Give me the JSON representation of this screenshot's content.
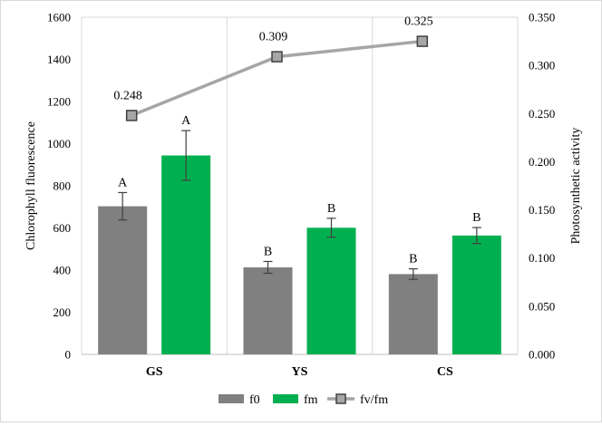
{
  "chart_data": {
    "type": "bar",
    "title": "",
    "categories": [
      "GS",
      "YS",
      "CS"
    ],
    "series": [
      {
        "name": "f0",
        "kind": "bar",
        "axis": "left",
        "color": "#808080",
        "values": [
          703,
          413,
          381
        ],
        "errors": [
          65,
          28,
          25
        ],
        "significance": [
          "A",
          "B",
          "B"
        ]
      },
      {
        "name": "fm",
        "kind": "bar",
        "axis": "left",
        "color": "#00b050",
        "values": [
          944,
          601,
          564
        ],
        "errors": [
          118,
          45,
          38
        ],
        "significance": [
          "A",
          "B",
          "B"
        ]
      },
      {
        "name": "fv/fm",
        "kind": "line",
        "axis": "right",
        "color": "#a6a6a6",
        "marker_fill": "#a6a6a6",
        "marker_stroke": "#404040",
        "values": [
          0.248,
          0.309,
          0.325
        ],
        "labels": [
          "0.248",
          "0.309",
          "0.325"
        ]
      }
    ],
    "ylabel": "Chlorophyll fluorescence",
    "ylim": [
      0,
      1600
    ],
    "yticks": [
      "0",
      "200",
      "400",
      "600",
      "800",
      "1000",
      "1200",
      "1400",
      "1600"
    ],
    "y2label": "Photosynthetic activity",
    "y2lim": [
      0,
      0.35
    ],
    "y2ticks": [
      "0.000",
      "0.050",
      "0.100",
      "0.150",
      "0.200",
      "0.250",
      "0.300",
      "0.350"
    ],
    "grid": "vertical category separators",
    "legend": "bottom-center"
  }
}
